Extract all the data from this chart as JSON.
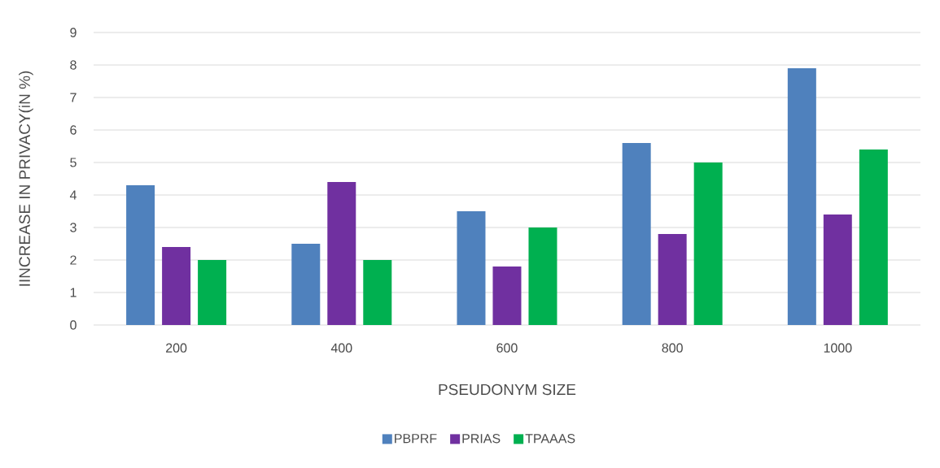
{
  "chart_data": {
    "type": "bar",
    "xlabel": "PSEUDONYM SIZE",
    "ylabel": "IINCREASE IN PRIVACY(iN %)",
    "categories": [
      "200",
      "400",
      "600",
      "800",
      "1000"
    ],
    "series": [
      {
        "name": "PBPRF",
        "color": "#4f81bd",
        "values": [
          4.3,
          2.5,
          3.5,
          5.6,
          7.9
        ]
      },
      {
        "name": "PRIAS",
        "color": "#7030a0",
        "values": [
          2.4,
          4.4,
          1.8,
          2.8,
          3.4
        ]
      },
      {
        "name": "TPAAAS",
        "color": "#00b050",
        "values": [
          2.0,
          2.0,
          3.0,
          5.0,
          5.4
        ]
      }
    ],
    "ylim": [
      0,
      9
    ],
    "yticks": [
      0,
      1,
      2,
      3,
      4,
      5,
      6,
      7,
      8,
      9
    ],
    "grid": "y",
    "legend": "bottom"
  }
}
